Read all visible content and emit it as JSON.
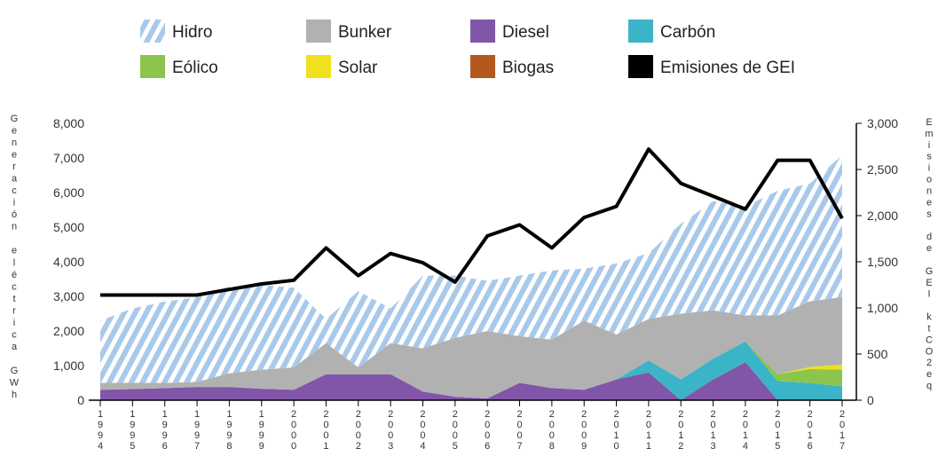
{
  "chart_data": {
    "type": "area",
    "left_axis": {
      "label": "Generación eléctrica GWh",
      "ticks": [
        "0",
        "1,000",
        "2,000",
        "3,000",
        "4,000",
        "5,000",
        "6,000",
        "7,000",
        "8,000"
      ],
      "range": [
        0,
        8000
      ]
    },
    "right_axis": {
      "label": "Emisiones de GEI ktCO2eq",
      "ticks": [
        "0",
        "500",
        "1,000",
        "1,500",
        "2,000",
        "2,500",
        "3,000"
      ],
      "range": [
        0,
        3000
      ]
    },
    "x": [
      "1994",
      "1995",
      "1996",
      "1997",
      "1998",
      "1999",
      "2000",
      "2001",
      "2002",
      "2003",
      "2004",
      "2005",
      "2006",
      "2007",
      "2008",
      "2009",
      "2010",
      "2011",
      "2012",
      "2013",
      "2014",
      "2015",
      "2016",
      "2017"
    ],
    "legend_placement": "top",
    "grid": false,
    "series": [
      {
        "name": "Diesel",
        "color": "#8155a8",
        "pattern": "solid",
        "axis": "left",
        "values": [
          300,
          320,
          350,
          380,
          380,
          330,
          300,
          750,
          750,
          750,
          250,
          100,
          50,
          500,
          350,
          300,
          600,
          800,
          0,
          600,
          1100,
          0,
          0,
          0
        ]
      },
      {
        "name": "Carbón",
        "color": "#3bb4c8",
        "pattern": "solid",
        "axis": "left",
        "values": [
          0,
          0,
          0,
          0,
          0,
          0,
          0,
          0,
          0,
          0,
          0,
          0,
          0,
          0,
          0,
          0,
          0,
          350,
          600,
          600,
          600,
          550,
          500,
          400
        ]
      },
      {
        "name": "Eólico",
        "color": "#8cc54e",
        "pattern": "solid",
        "axis": "left",
        "values": [
          0,
          0,
          0,
          0,
          0,
          0,
          0,
          0,
          0,
          0,
          0,
          0,
          0,
          0,
          0,
          0,
          0,
          0,
          0,
          0,
          0,
          200,
          400,
          480
        ]
      },
      {
        "name": "Solar",
        "color": "#f0e01e",
        "pattern": "solid",
        "axis": "left",
        "values": [
          0,
          0,
          0,
          0,
          0,
          0,
          0,
          0,
          0,
          0,
          0,
          0,
          0,
          0,
          0,
          0,
          0,
          0,
          0,
          0,
          0,
          0,
          60,
          150
        ]
      },
      {
        "name": "Biogas",
        "color": "#b4581e",
        "pattern": "solid",
        "axis": "left",
        "values": [
          0,
          0,
          0,
          0,
          0,
          0,
          0,
          0,
          0,
          0,
          0,
          0,
          0,
          0,
          0,
          0,
          0,
          0,
          0,
          0,
          0,
          0,
          0,
          0
        ]
      },
      {
        "name": "Bunker",
        "color": "#b1b1b1",
        "pattern": "solid",
        "axis": "left",
        "values": [
          200,
          180,
          150,
          150,
          400,
          550,
          650,
          900,
          200,
          900,
          1250,
          1700,
          1950,
          1350,
          1400,
          2000,
          1300,
          1200,
          1900,
          1400,
          750,
          1700,
          1900,
          1950
        ]
      },
      {
        "name": "Hidro",
        "color": "#a9c9ea",
        "pattern": "diagonal-stripes",
        "axis": "left",
        "values": [
          1800,
          2150,
          2350,
          2450,
          2500,
          2450,
          2300,
          700,
          2200,
          1000,
          2100,
          1800,
          1450,
          1750,
          2000,
          1500,
          2050,
          1900,
          2600,
          3150,
          3150,
          3600,
          3400,
          4100
        ]
      },
      {
        "name": "Emisiones de GEI",
        "color": "#000000",
        "pattern": "line",
        "axis": "right",
        "values": [
          1140,
          1140,
          1140,
          1140,
          1200,
          1260,
          1300,
          1650,
          1350,
          1590,
          1490,
          1280,
          1780,
          1900,
          1650,
          1980,
          2100,
          2720,
          2350,
          2210,
          2070,
          2600,
          2600,
          1970
        ]
      }
    ]
  }
}
